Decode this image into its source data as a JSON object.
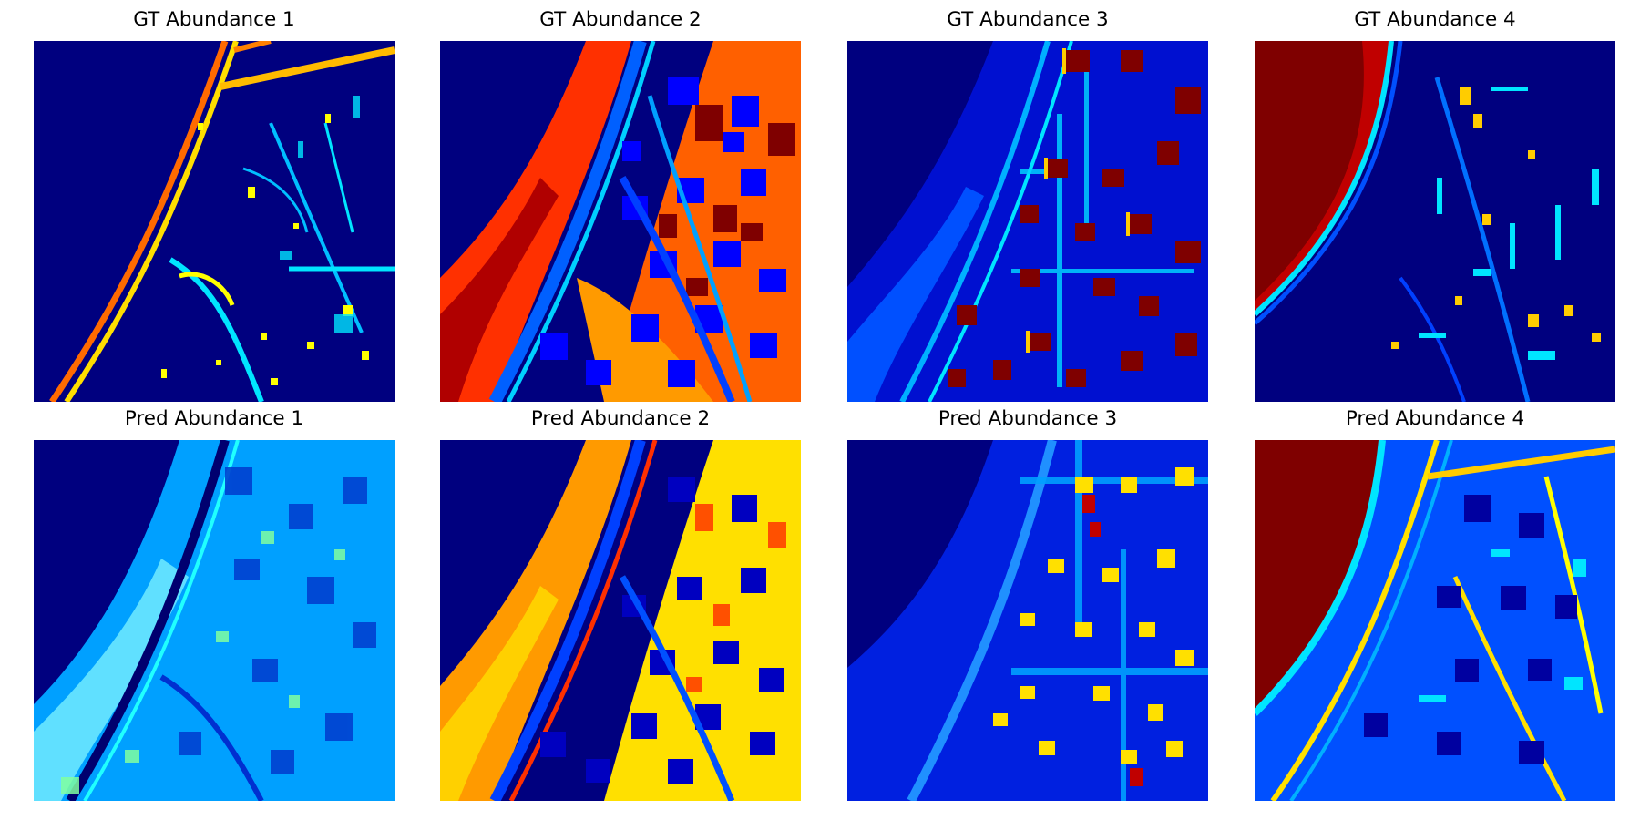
{
  "figure": {
    "rows": [
      {
        "panels": [
          {
            "title": "GT Abundance 1",
            "id": "gt1"
          },
          {
            "title": "GT Abundance 2",
            "id": "gt2"
          },
          {
            "title": "GT Abundance 3",
            "id": "gt3"
          },
          {
            "title": "GT Abundance 4",
            "id": "gt4"
          }
        ]
      },
      {
        "panels": [
          {
            "title": "Pred Abundance 1",
            "id": "pr1"
          },
          {
            "title": "Pred Abundance 2",
            "id": "pr2"
          },
          {
            "title": "Pred Abundance 3",
            "id": "pr3"
          },
          {
            "title": "Pred Abundance 4",
            "id": "pr4"
          }
        ]
      }
    ],
    "colormap": "jet",
    "colormap_colors": {
      "low": "#00007f",
      "blue": "#0000ff",
      "cyan": "#00e5ff",
      "yellow": "#ffff00",
      "orange": "#ff8000",
      "high": "#7f0000"
    }
  }
}
